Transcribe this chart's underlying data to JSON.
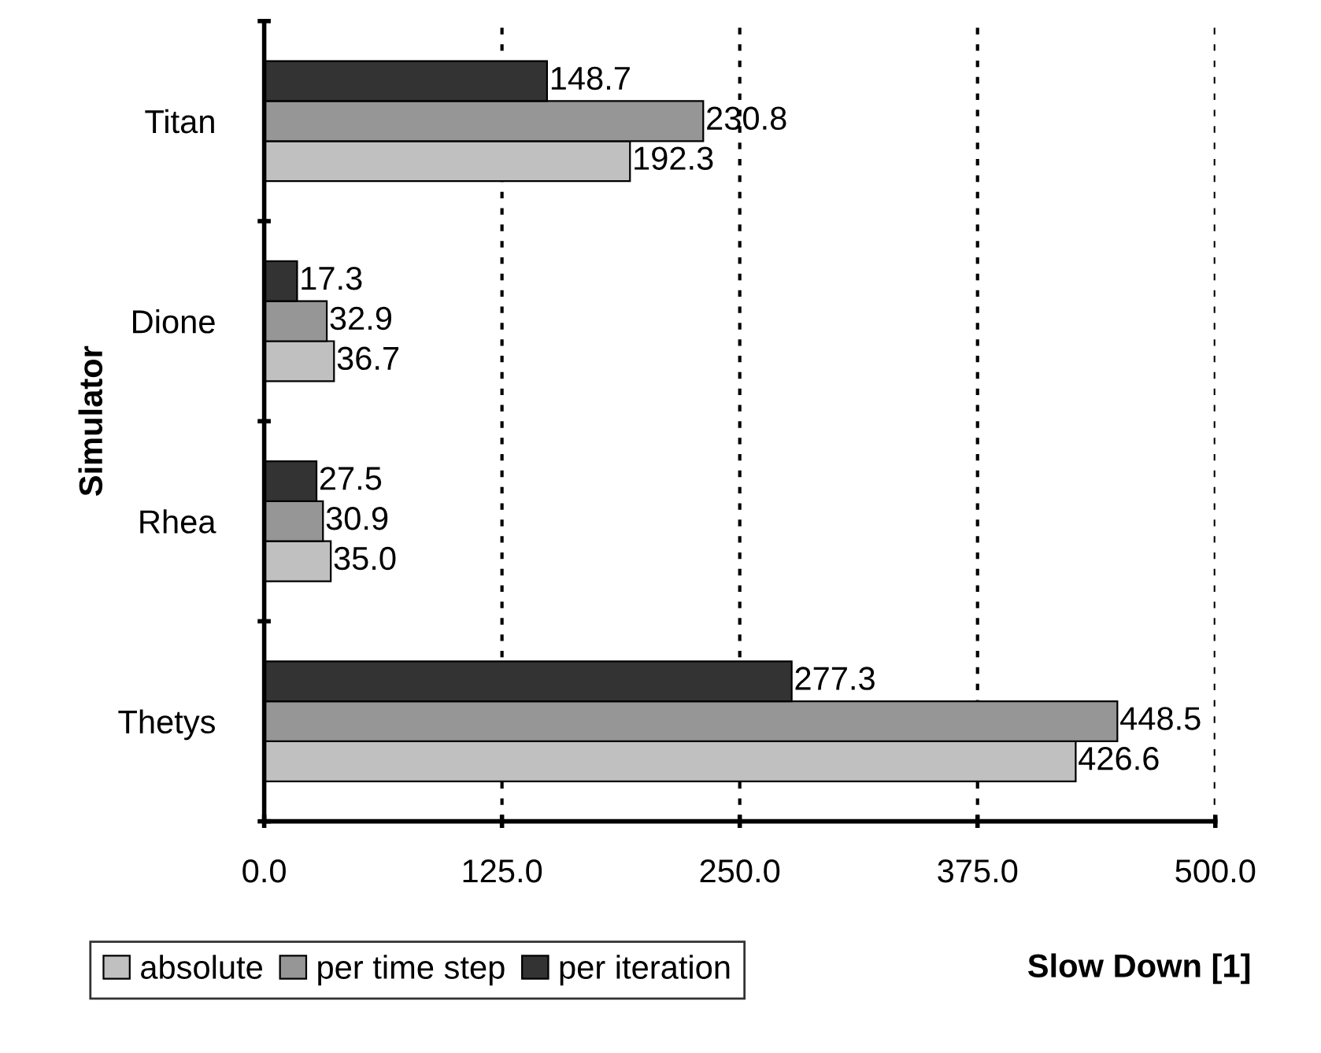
{
  "chart_data": {
    "type": "bar",
    "orientation": "horizontal",
    "xlabel": "Slow Down [1]",
    "ylabel": "Simulator",
    "categories": [
      "Titan",
      "Dione",
      "Rhea",
      "Thetys"
    ],
    "series": [
      {
        "name": "absolute",
        "color": "#c0c0c0",
        "values": [
          192.3,
          36.7,
          35.0,
          426.6
        ],
        "value_labels": [
          "192.3",
          "36.7",
          "35.0",
          "426.6"
        ]
      },
      {
        "name": "per time step",
        "color": "#969696",
        "values": [
          230.8,
          32.9,
          30.9,
          448.5
        ],
        "value_labels": [
          "230.8",
          "32.9",
          "30.9",
          "448.5"
        ]
      },
      {
        "name": "per iteration",
        "color": "#333333",
        "values": [
          148.7,
          17.3,
          27.5,
          277.3
        ],
        "value_labels": [
          "148.7",
          "17.3",
          "27.5",
          "277.3"
        ]
      }
    ],
    "xlim": [
      0,
      500
    ],
    "xticks": [
      {
        "value": 0,
        "label": "0.0"
      },
      {
        "value": 125,
        "label": "125.0"
      },
      {
        "value": 250,
        "label": "250.0"
      },
      {
        "value": 375,
        "label": "375.0"
      },
      {
        "value": 500,
        "label": "500.0"
      }
    ],
    "grid": "x",
    "legend": "bottom left"
  }
}
